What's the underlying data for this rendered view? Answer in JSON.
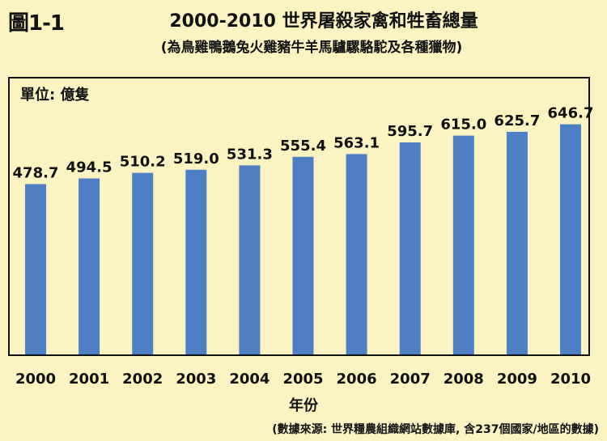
{
  "figure_label": "圖1-1",
  "chart_data": {
    "type": "bar",
    "title": "2000-2010 世界屠殺家禽和牲畜總量",
    "subtitle": "(為鳥雞鴨鵝兔火雞豬牛羊馬驢騾駱駝及各種獵物)",
    "unit_label": "單位: 億隻",
    "xlabel": "年份",
    "ylabel": "",
    "categories": [
      "2000",
      "2001",
      "2002",
      "2003",
      "2004",
      "2005",
      "2006",
      "2007",
      "2008",
      "2009",
      "2010"
    ],
    "values": [
      478.7,
      494.5,
      510.2,
      519.0,
      531.3,
      555.4,
      563.1,
      595.7,
      615.0,
      625.7,
      646.7
    ],
    "value_labels": [
      "478.7",
      "494.5",
      "510.2",
      "519.0",
      "531.3",
      "555.4",
      "563.1",
      "595.7",
      "615.0",
      "625.7",
      "646.7"
    ],
    "ylim": [
      0,
      780
    ],
    "bar_color": "#4e7fc4",
    "grid": false,
    "legend": "none"
  },
  "source_note": "(數據來源: 世界糧農組織網站數據庫, 含237個國家/地區的數據)"
}
